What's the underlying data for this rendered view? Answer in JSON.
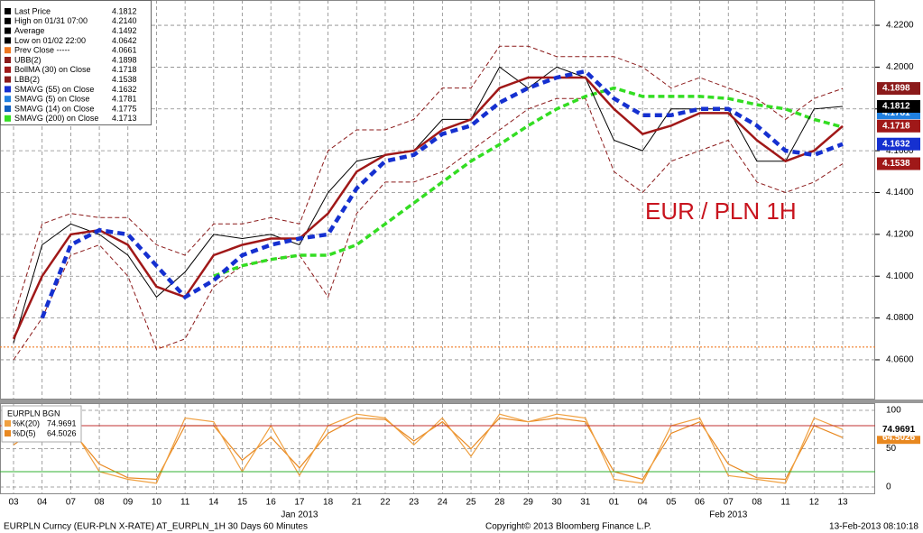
{
  "chart_data": {
    "type": "line",
    "annotation": "EUR / PLN 1H",
    "categories": [
      "03",
      "04",
      "07",
      "08",
      "09",
      "10",
      "11",
      "14",
      "15",
      "16",
      "17",
      "18",
      "21",
      "22",
      "23",
      "24",
      "25",
      "28",
      "29",
      "30",
      "31",
      "01",
      "04",
      "05",
      "06",
      "07",
      "08",
      "11",
      "12",
      "13"
    ],
    "month_labels": [
      "Jan 2013",
      "Feb 2013"
    ],
    "ylim": [
      4.041,
      4.2321
    ],
    "yticks": [
      {
        "value": 4.06,
        "label": "4.0600"
      },
      {
        "value": 4.08,
        "label": "4.0800"
      },
      {
        "value": 4.1,
        "label": "4.1000"
      },
      {
        "value": 4.12,
        "label": "4.1200"
      },
      {
        "value": 4.14,
        "label": "4.1400"
      },
      {
        "value": 4.16,
        "label": "4.1600"
      },
      {
        "value": 4.18,
        "label": "4.1800"
      },
      {
        "value": 4.2,
        "label": "4.2000"
      },
      {
        "value": 4.22,
        "label": "4.2200"
      }
    ],
    "grid": true,
    "legend": [
      {
        "label": "Last Price",
        "value": {
          "value": 4.1812,
          "label": "4.1812"
        },
        "color": "#000000"
      },
      {
        "label": "High on 01/31 07:00",
        "value": {
          "value": 4.214,
          "label": "4.2140"
        },
        "color": "#000000"
      },
      {
        "label": "Average",
        "value": {
          "value": 4.1492,
          "label": "4.1492"
        },
        "color": "#000000"
      },
      {
        "label": "Low on 01/02 22:00",
        "value": {
          "value": 4.0642,
          "label": "4.0642"
        },
        "color": "#000000"
      },
      {
        "label": "Prev Close -----",
        "value": {
          "value": 4.0661,
          "label": "4.0661"
        },
        "color": "#f07820"
      },
      {
        "label": "UBB(2)",
        "value": {
          "value": 4.1898,
          "label": "4.1898"
        },
        "color": "#8b1a1a"
      },
      {
        "label": "BollMA (30) on Close",
        "value": {
          "value": 4.1718,
          "label": "4.1718"
        },
        "color": "#a01818"
      },
      {
        "label": "LBB(2)",
        "value": {
          "value": 4.1538,
          "label": "4.1538"
        },
        "color": "#8b1a1a"
      },
      {
        "label": "SMAVG (55) on Close",
        "value": {
          "value": 4.1632,
          "label": "4.1632"
        },
        "color": "#1530d0"
      },
      {
        "label": "SMAVG (5) on Close",
        "value": {
          "value": 4.1781,
          "label": "4.1781"
        },
        "color": "#2080e0"
      },
      {
        "label": "SMAVG (14) on Close",
        "value": {
          "value": 4.1775,
          "label": "4.1775"
        },
        "color": "#1060c0"
      },
      {
        "label": "SMAVG (200) on Close",
        "value": {
          "value": 4.1713,
          "label": "4.1713"
        },
        "color": "#33dd22"
      }
    ],
    "series": [
      {
        "color": "#8b1a1a",
        "width": 1,
        "dash": "5 3",
        "values": [
          4.08,
          4.125,
          4.13,
          4.128,
          4.128,
          4.115,
          4.11,
          4.125,
          4.125,
          4.128,
          4.125,
          4.16,
          4.17,
          4.17,
          4.175,
          4.19,
          4.19,
          4.21,
          4.21,
          4.205,
          4.205,
          4.205,
          4.2,
          4.19,
          4.195,
          4.19,
          4.185,
          4.175,
          4.185,
          4.1898
        ]
      },
      {
        "color": "#8b1a1a",
        "width": 1,
        "dash": "5 3",
        "values": [
          4.06,
          4.08,
          4.11,
          4.115,
          4.1,
          4.065,
          4.07,
          4.095,
          4.105,
          4.108,
          4.11,
          4.09,
          4.13,
          4.145,
          4.145,
          4.15,
          4.16,
          4.17,
          4.18,
          4.185,
          4.185,
          4.15,
          4.14,
          4.155,
          4.16,
          4.165,
          4.145,
          4.14,
          4.145,
          4.1538
        ]
      },
      {
        "color": "#33dd22",
        "width": 3.5,
        "dash": "7 4",
        "values": [
          null,
          null,
          null,
          null,
          null,
          null,
          null,
          4.1,
          4.105,
          4.108,
          4.11,
          4.11,
          4.115,
          4.125,
          4.135,
          4.145,
          4.155,
          4.163,
          4.172,
          4.18,
          4.186,
          4.19,
          4.186,
          4.186,
          4.186,
          4.185,
          4.182,
          4.18,
          4.175,
          4.1713
        ]
      },
      {
        "color": "#000000",
        "width": 1,
        "dash": "",
        "values": [
          4.068,
          4.115,
          4.125,
          4.12,
          4.11,
          4.09,
          4.102,
          4.12,
          4.118,
          4.12,
          4.115,
          4.14,
          4.155,
          4.158,
          4.16,
          4.175,
          4.175,
          4.2,
          4.19,
          4.2,
          4.195,
          4.165,
          4.16,
          4.18,
          4.18,
          4.18,
          4.155,
          4.155,
          4.18,
          4.1812
        ]
      },
      {
        "color": "#a01818",
        "width": 2.5,
        "dash": "",
        "values": [
          4.07,
          4.1,
          4.12,
          4.122,
          4.115,
          4.095,
          4.09,
          4.11,
          4.115,
          4.118,
          4.118,
          4.13,
          4.15,
          4.158,
          4.16,
          4.17,
          4.175,
          4.19,
          4.195,
          4.195,
          4.195,
          4.18,
          4.168,
          4.172,
          4.178,
          4.178,
          4.165,
          4.155,
          4.16,
          4.1718
        ]
      },
      {
        "color": "#1530d0",
        "width": 4.5,
        "dash": "8 5",
        "values": [
          null,
          4.08,
          4.115,
          4.122,
          4.12,
          4.105,
          4.09,
          4.098,
          4.11,
          4.115,
          4.118,
          4.12,
          4.142,
          4.155,
          4.158,
          4.168,
          4.172,
          4.183,
          4.19,
          4.195,
          4.198,
          4.185,
          4.177,
          4.177,
          4.18,
          4.18,
          4.172,
          4.16,
          4.158,
          4.1632
        ]
      }
    ],
    "stoch": {
      "title": "EURPLN BGN",
      "ylim": [
        -9.4,
        109.4
      ],
      "yticks": [
        0,
        50,
        100
      ],
      "levels": [
        80,
        20
      ],
      "k": {
        "label": "%K(20)",
        "value": {
          "value": 74.9691,
          "label": "74.9691"
        },
        "color": "#f0a040",
        "values": [
          60,
          85,
          80,
          20,
          10,
          5,
          90,
          85,
          20,
          80,
          15,
          80,
          95,
          90,
          55,
          90,
          40,
          95,
          85,
          95,
          90,
          10,
          5,
          80,
          90,
          15,
          10,
          5,
          90,
          75
        ]
      },
      "d": {
        "label": "%D(5)",
        "value": {
          "value": 64.5026,
          "label": "64.5026"
        },
        "color": "#e88820",
        "values": [
          55,
          80,
          75,
          30,
          12,
          10,
          80,
          80,
          35,
          65,
          25,
          70,
          90,
          88,
          60,
          85,
          50,
          90,
          85,
          90,
          85,
          20,
          10,
          70,
          85,
          30,
          12,
          10,
          80,
          64.5026
        ]
      }
    },
    "footer": {
      "left": "EURPLN Curncy (EUR-PLN X-RATE) AT_EURPLN_1H 30 Days 60 Minutes",
      "center": "Copyright© 2013 Bloomberg Finance L.P.",
      "right": "13-Feb-2013 08:10:18"
    }
  }
}
